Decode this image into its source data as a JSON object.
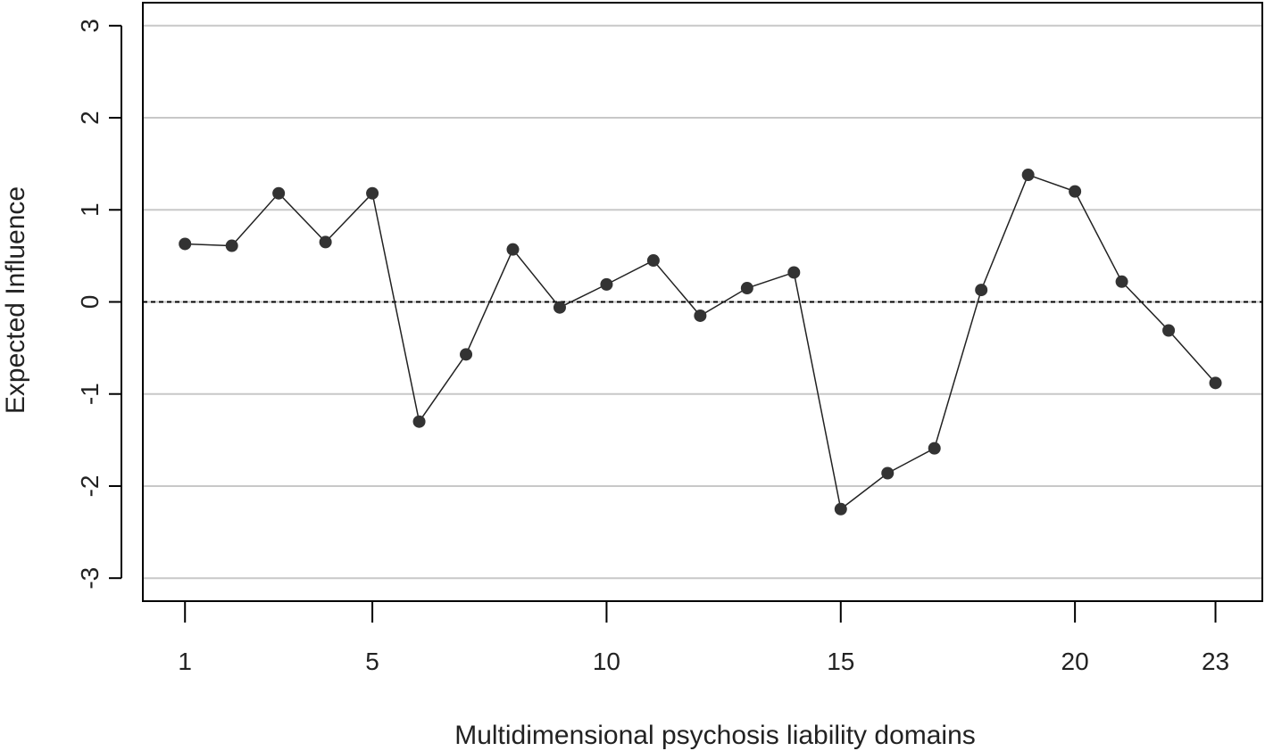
{
  "chart_data": {
    "type": "line",
    "title": "",
    "xlabel": "Multidimensional psychosis liability domains",
    "ylabel": "Expected Influence",
    "x": [
      1,
      2,
      3,
      4,
      5,
      6,
      7,
      8,
      9,
      10,
      11,
      12,
      13,
      14,
      15,
      16,
      17,
      18,
      19,
      20,
      21,
      22,
      23
    ],
    "values": [
      0.63,
      0.61,
      1.18,
      0.65,
      1.18,
      -1.3,
      -0.57,
      0.57,
      -0.06,
      0.19,
      0.45,
      -0.15,
      0.15,
      0.32,
      -2.25,
      -1.86,
      -1.59,
      0.13,
      1.38,
      1.2,
      0.22,
      -0.31,
      -0.88
    ],
    "xticks": [
      1,
      5,
      10,
      15,
      20,
      23
    ],
    "xtick_labels": [
      "1",
      "5",
      "10",
      "15",
      "20",
      "23"
    ],
    "yticks": [
      -3,
      -2,
      -1,
      0,
      1,
      2,
      3
    ],
    "ytick_labels": [
      "-3",
      "-2",
      "-1",
      "0",
      "1",
      "2",
      "3"
    ],
    "ylim": [
      -3.25,
      3.25
    ],
    "xlim": [
      0.1,
      24.0
    ],
    "reference_line": 0,
    "grid": "horizontal",
    "line_color": "#222222",
    "marker_color": "#333333",
    "grid_color": "#c8c8c8"
  }
}
